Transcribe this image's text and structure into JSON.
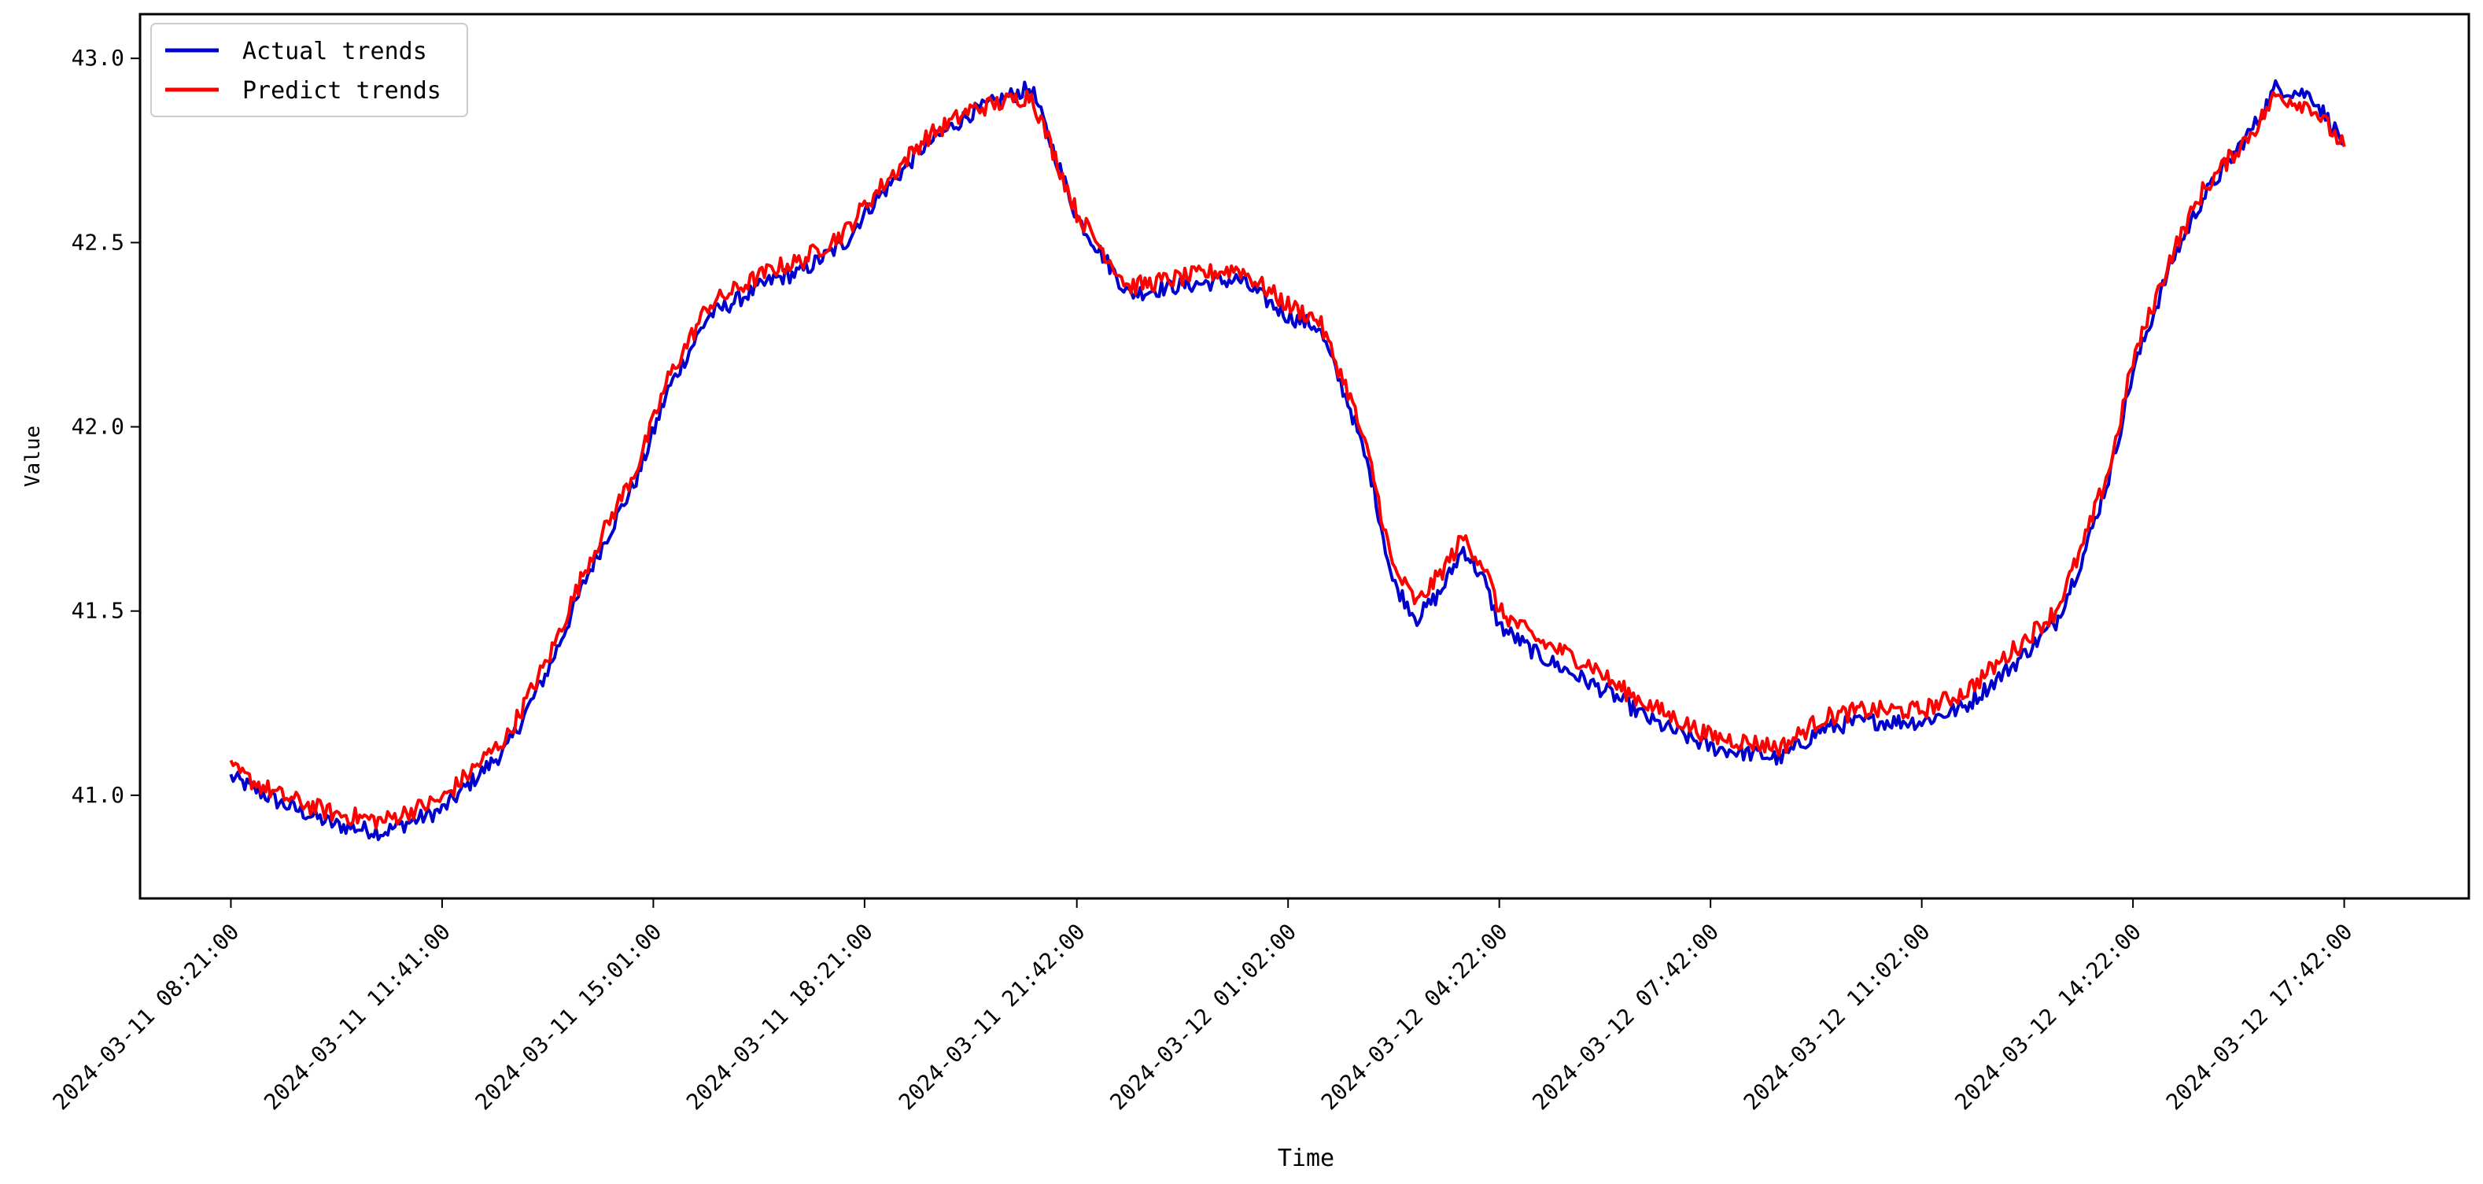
{
  "chart_data": {
    "type": "line",
    "title": "",
    "xlabel": "Time",
    "ylabel": "Value",
    "ylim": [
      40.72,
      43.12
    ],
    "yticks": [
      41.0,
      41.5,
      42.0,
      42.5,
      43.0
    ],
    "ytick_labels": [
      "41.0",
      "41.5",
      "42.0",
      "42.5",
      "43.0"
    ],
    "xlim": [
      "2024-03-11 06:55:00",
      "2024-03-12 19:40:00"
    ],
    "xticks": [
      "2024-03-11 08:21:00",
      "2024-03-11 11:41:00",
      "2024-03-11 15:01:00",
      "2024-03-11 18:21:00",
      "2024-03-11 21:42:00",
      "2024-03-12 01:02:00",
      "2024-03-12 04:22:00",
      "2024-03-12 07:42:00",
      "2024-03-12 11:02:00",
      "2024-03-12 14:22:00",
      "2024-03-12 17:42:00"
    ],
    "xtick_labels": [
      "2024-03-11 08:21:00",
      "2024-03-11 11:41:00",
      "2024-03-11 15:01:00",
      "2024-03-11 18:21:00",
      "2024-03-11 21:42:00",
      "2024-03-12 01:02:00",
      "2024-03-12 04:22:00",
      "2024-03-12 07:42:00",
      "2024-03-12 11:02:00",
      "2024-03-12 14:22:00",
      "2024-03-12 17:42:00"
    ],
    "grid": false,
    "legend_position": "top-left",
    "series": [
      {
        "name": "Actual trends",
        "color": "#0000cc",
        "x": [
          "2024-03-11 08:21:00",
          "2024-03-11 09:07:00",
          "2024-03-11 09:59:00",
          "2024-03-11 10:45:00",
          "2024-03-11 11:41:00",
          "2024-03-11 12:43:00",
          "2024-03-11 13:23:00",
          "2024-03-11 13:59:00",
          "2024-03-11 14:47:00",
          "2024-03-11 15:15:00",
          "2024-03-11 15:53:00",
          "2024-03-11 16:55:00",
          "2024-03-11 17:21:00",
          "2024-03-11 18:03:00",
          "2024-03-11 18:21:00",
          "2024-03-11 19:17:00",
          "2024-03-11 20:01:00",
          "2024-03-11 20:31:00",
          "2024-03-11 20:59:00",
          "2024-03-11 21:42:00",
          "2024-03-11 22:31:00",
          "2024-03-11 23:11:00",
          "2024-03-12 00:15:00",
          "2024-03-12 01:02:00",
          "2024-03-12 01:31:00",
          "2024-03-12 02:01:00",
          "2024-03-12 02:21:00",
          "2024-03-12 02:41:00",
          "2024-03-12 03:04:00",
          "2024-03-12 03:26:00",
          "2024-03-12 03:48:00",
          "2024-03-12 04:08:00",
          "2024-03-12 04:22:00",
          "2024-03-12 04:59:00",
          "2024-03-12 05:51:00",
          "2024-03-12 06:11:00",
          "2024-03-12 06:47:00",
          "2024-03-12 07:42:00",
          "2024-03-12 08:49:00",
          "2024-03-12 09:28:00",
          "2024-03-12 10:05:00",
          "2024-03-12 11:02:00",
          "2024-03-12 11:43:00",
          "2024-03-12 12:31:00",
          "2024-03-12 13:09:00",
          "2024-03-12 13:35:00",
          "2024-03-12 14:01:00",
          "2024-03-12 14:22:00",
          "2024-03-12 14:59:00",
          "2024-03-12 15:28:00",
          "2024-03-12 16:20:00",
          "2024-03-12 16:37:00",
          "2024-03-12 17:11:00",
          "2024-03-12 17:42:00"
        ],
        "values": [
          41.05,
          40.98,
          40.92,
          40.9,
          40.96,
          41.13,
          41.35,
          41.6,
          41.87,
          42.1,
          42.3,
          42.4,
          42.42,
          42.5,
          42.58,
          42.76,
          42.85,
          42.89,
          42.92,
          42.57,
          42.36,
          42.38,
          42.4,
          42.3,
          42.27,
          42.05,
          41.86,
          41.58,
          41.48,
          41.55,
          41.67,
          41.58,
          41.46,
          41.38,
          41.3,
          41.27,
          41.2,
          41.13,
          41.1,
          41.18,
          41.2,
          41.2,
          41.24,
          41.36,
          41.47,
          41.65,
          41.88,
          42.15,
          42.45,
          42.62,
          42.83,
          42.92,
          42.9,
          42.77
        ]
      },
      {
        "name": "Predict trends",
        "color": "#ff0000",
        "x": [
          "2024-03-11 08:21:00",
          "2024-03-11 09:07:00",
          "2024-03-11 09:59:00",
          "2024-03-11 10:45:00",
          "2024-03-11 11:41:00",
          "2024-03-11 12:43:00",
          "2024-03-11 13:23:00",
          "2024-03-11 13:59:00",
          "2024-03-11 14:47:00",
          "2024-03-11 15:15:00",
          "2024-03-11 15:53:00",
          "2024-03-11 16:55:00",
          "2024-03-11 17:21:00",
          "2024-03-11 18:03:00",
          "2024-03-11 18:21:00",
          "2024-03-11 19:17:00",
          "2024-03-11 20:01:00",
          "2024-03-11 20:31:00",
          "2024-03-11 20:59:00",
          "2024-03-11 21:42:00",
          "2024-03-11 22:31:00",
          "2024-03-11 23:11:00",
          "2024-03-12 00:15:00",
          "2024-03-12 01:02:00",
          "2024-03-12 01:31:00",
          "2024-03-12 02:01:00",
          "2024-03-12 02:21:00",
          "2024-03-12 02:41:00",
          "2024-03-12 03:04:00",
          "2024-03-12 03:26:00",
          "2024-03-12 03:48:00",
          "2024-03-12 04:08:00",
          "2024-03-12 04:22:00",
          "2024-03-12 04:59:00",
          "2024-03-12 05:51:00",
          "2024-03-12 06:11:00",
          "2024-03-12 06:47:00",
          "2024-03-12 07:42:00",
          "2024-03-12 08:49:00",
          "2024-03-12 09:28:00",
          "2024-03-12 10:05:00",
          "2024-03-12 11:02:00",
          "2024-03-12 11:43:00",
          "2024-03-12 12:31:00",
          "2024-03-12 13:09:00",
          "2024-03-12 13:35:00",
          "2024-03-12 14:01:00",
          "2024-03-12 14:22:00",
          "2024-03-12 14:59:00",
          "2024-03-12 15:28:00",
          "2024-03-12 16:20:00",
          "2024-03-12 16:37:00",
          "2024-03-12 17:11:00",
          "2024-03-12 17:42:00"
        ],
        "values": [
          41.07,
          41.0,
          40.95,
          40.93,
          40.99,
          41.16,
          41.38,
          41.63,
          41.9,
          42.13,
          42.33,
          42.43,
          42.45,
          42.53,
          42.6,
          42.78,
          42.86,
          42.88,
          42.9,
          42.58,
          42.38,
          42.4,
          42.43,
          42.33,
          42.29,
          42.08,
          41.89,
          41.62,
          41.52,
          41.6,
          41.7,
          41.62,
          41.5,
          41.42,
          41.35,
          41.3,
          41.24,
          41.16,
          41.13,
          41.21,
          41.23,
          41.23,
          41.28,
          41.4,
          41.5,
          41.68,
          41.9,
          42.18,
          42.47,
          42.64,
          42.82,
          42.9,
          42.87,
          42.76
        ]
      }
    ]
  }
}
